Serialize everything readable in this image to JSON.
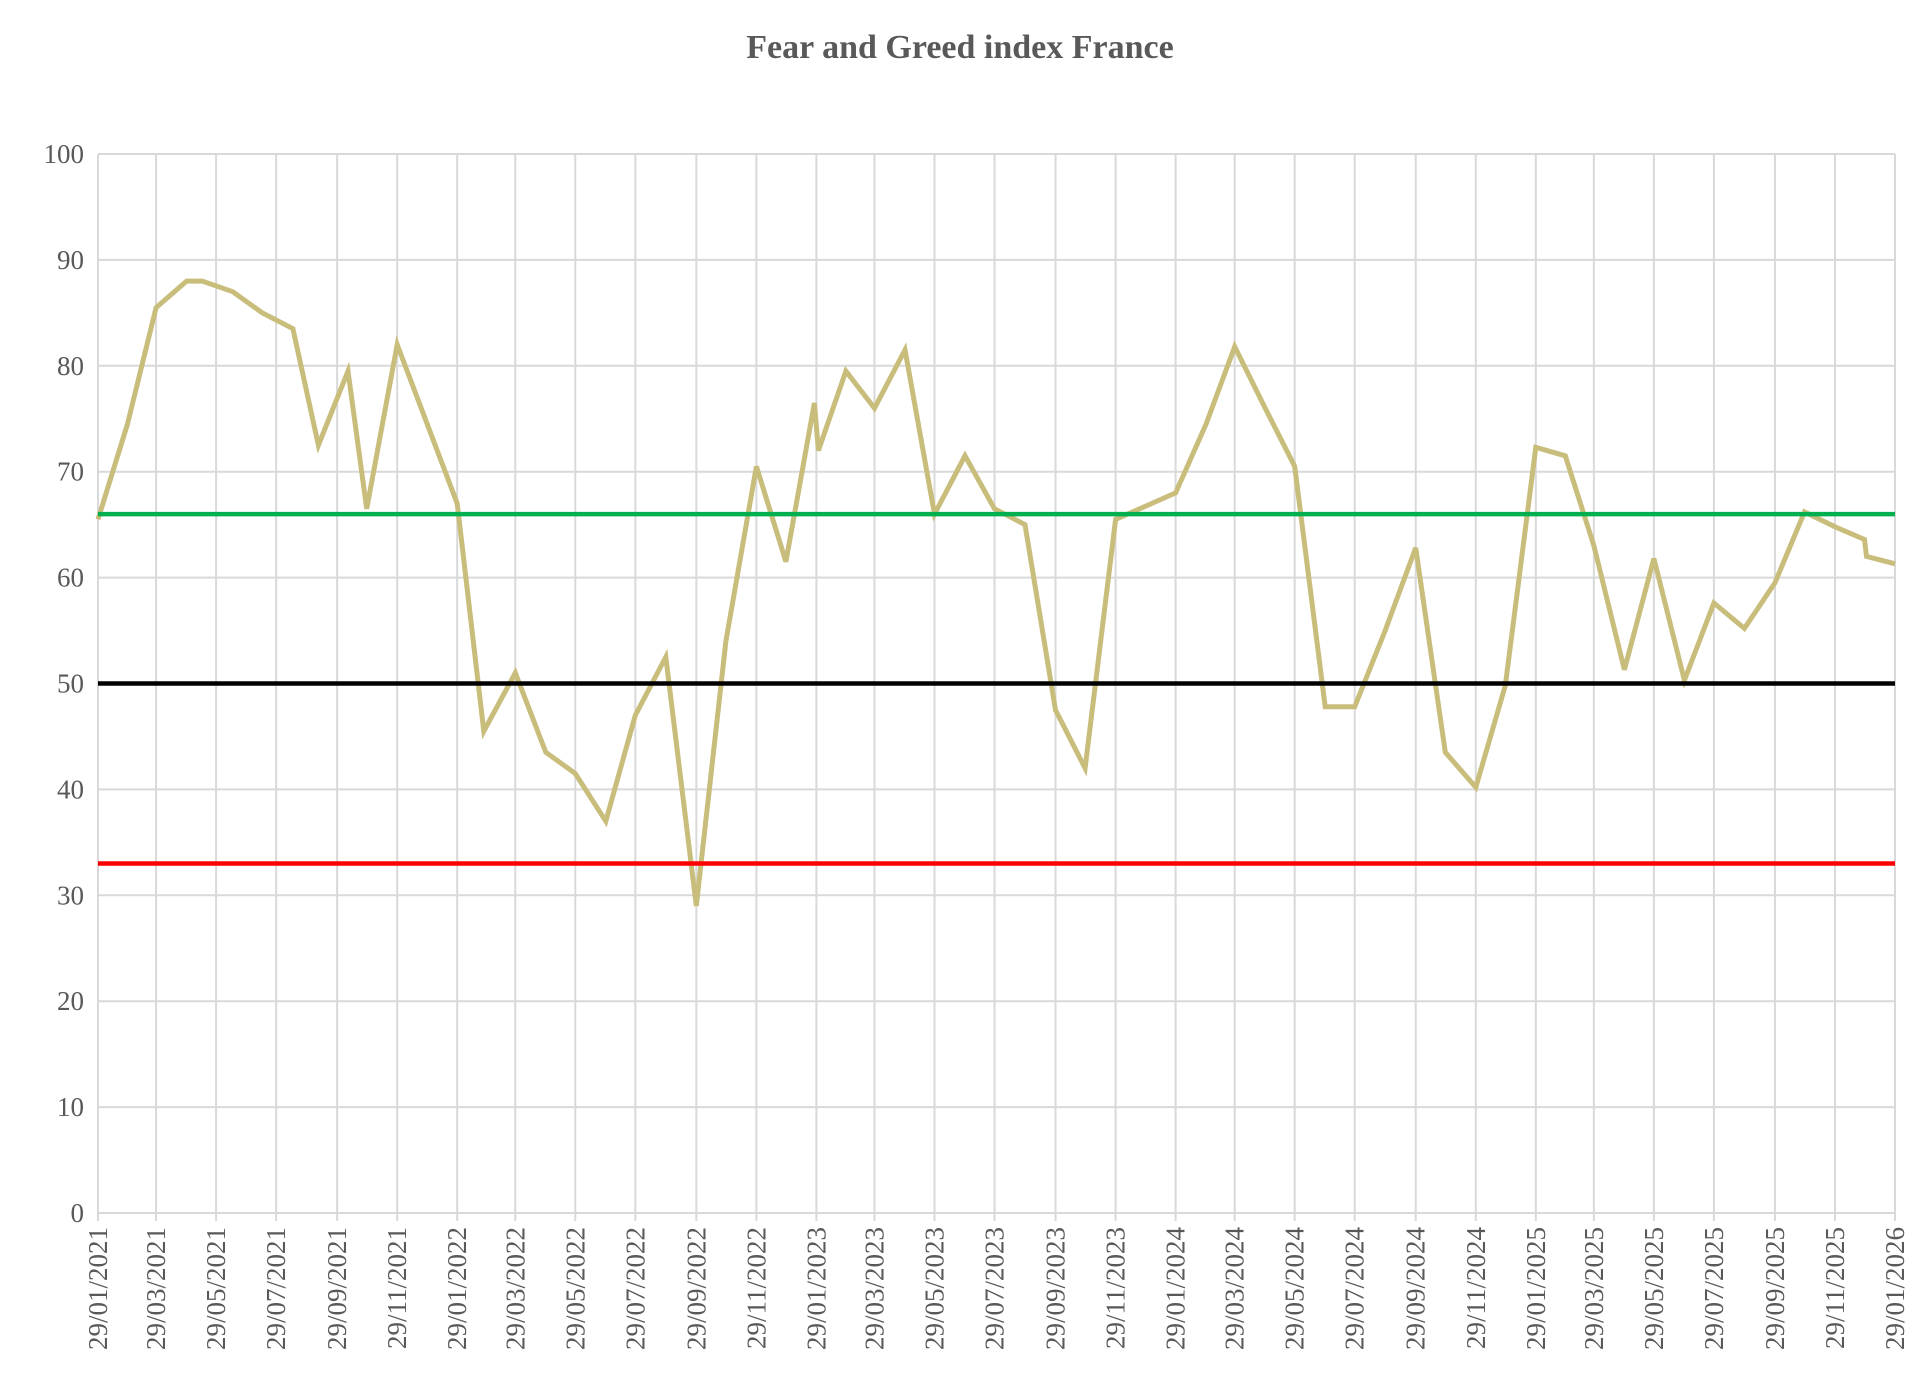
{
  "chart_data": {
    "type": "line",
    "title": "Fear and Greed index France",
    "xlabel": "",
    "ylabel": "",
    "ylim": [
      0,
      100
    ],
    "yticks": [
      "0",
      "10",
      "20",
      "30",
      "40",
      "50",
      "60",
      "70",
      "80",
      "90",
      "100"
    ],
    "x_tick_labels": [
      "29/01/2021",
      "29/03/2021",
      "29/05/2021",
      "29/07/2021",
      "29/09/2021",
      "29/11/2021",
      "29/01/2022",
      "29/03/2022",
      "29/05/2022",
      "29/07/2022",
      "29/09/2022",
      "29/11/2022",
      "29/01/2023",
      "29/03/2023",
      "29/05/2023",
      "29/07/2023",
      "29/09/2023",
      "29/11/2023",
      "29/01/2024",
      "29/03/2024",
      "29/05/2024",
      "29/07/2024",
      "29/09/2024",
      "29/11/2024",
      "29/01/2025",
      "29/03/2025",
      "29/05/2025",
      "29/07/2025",
      "29/09/2025",
      "29/11/2025",
      "29/01/2026"
    ],
    "x_range": [
      "29/01/2021",
      "29/01/2026"
    ],
    "grid": true,
    "legend": "none",
    "series": [
      {
        "color": "#c9bd7c",
        "points": [
          [
            "29/01/2021",
            65.5
          ],
          [
            "28/02/2021",
            74.5
          ],
          [
            "29/03/2021",
            85.5
          ],
          [
            "29/04/2021",
            88
          ],
          [
            "15/05/2021",
            88
          ],
          [
            "15/06/2021",
            87
          ],
          [
            "15/07/2021",
            85
          ],
          [
            "15/08/2021",
            83.5
          ],
          [
            "10/09/2021",
            72.5
          ],
          [
            "10/10/2021",
            79.5
          ],
          [
            "29/10/2021",
            66.5
          ],
          [
            "29/11/2021",
            82
          ],
          [
            "29/01/2022",
            67
          ],
          [
            "25/02/2022",
            45.5
          ],
          [
            "29/03/2022",
            51
          ],
          [
            "29/04/2022",
            43.5
          ],
          [
            "29/05/2022",
            41.5
          ],
          [
            "29/06/2022",
            37
          ],
          [
            "29/07/2022",
            47
          ],
          [
            "29/08/2022",
            52.5
          ],
          [
            "29/09/2022",
            29
          ],
          [
            "29/10/2022",
            54
          ],
          [
            "29/11/2022",
            70.5
          ],
          [
            "29/12/2022",
            61.5
          ],
          [
            "27/01/2023",
            76.5
          ],
          [
            "31/01/2023",
            72
          ],
          [
            "28/02/2023",
            79.5
          ],
          [
            "29/03/2023",
            76
          ],
          [
            "29/04/2023",
            81.5
          ],
          [
            "29/05/2023",
            66
          ],
          [
            "29/06/2023",
            71.5
          ],
          [
            "29/07/2023",
            66.5
          ],
          [
            "29/08/2023",
            65
          ],
          [
            "29/09/2023",
            47.5
          ],
          [
            "29/10/2023",
            42
          ],
          [
            "29/11/2023",
            65.5
          ],
          [
            "29/01/2024",
            68
          ],
          [
            "29/02/2024",
            74.5
          ],
          [
            "29/03/2024",
            81.8
          ],
          [
            "29/04/2024",
            76
          ],
          [
            "29/05/2024",
            70.5
          ],
          [
            "29/06/2024",
            47.8
          ],
          [
            "29/07/2024",
            47.8
          ],
          [
            "29/08/2024",
            55
          ],
          [
            "29/09/2024",
            62.8
          ],
          [
            "29/10/2024",
            43.5
          ],
          [
            "29/11/2024",
            40.2
          ],
          [
            "29/12/2024",
            49.8
          ],
          [
            "29/01/2025",
            72.3
          ],
          [
            "28/02/2025",
            71.5
          ],
          [
            "29/03/2025",
            63
          ],
          [
            "29/04/2025",
            51.3
          ],
          [
            "29/05/2025",
            61.8
          ],
          [
            "29/06/2025",
            50.3
          ],
          [
            "29/07/2025",
            57.6
          ],
          [
            "29/08/2025",
            55.2
          ],
          [
            "29/09/2025",
            59.5
          ],
          [
            "29/10/2025",
            66.2
          ],
          [
            "29/11/2025",
            64.8
          ],
          [
            "29/12/2025",
            63.6
          ],
          [
            "31/12/2025",
            62
          ],
          [
            "29/01/2026",
            61.3
          ]
        ]
      },
      {
        "color": "#00b050",
        "points": [
          [
            "29/01/2021",
            66
          ],
          [
            "29/01/2026",
            66
          ]
        ]
      },
      {
        "color": "#000000",
        "points": [
          [
            "29/01/2021",
            50
          ],
          [
            "29/01/2026",
            50
          ]
        ]
      },
      {
        "color": "#ff0000",
        "points": [
          [
            "29/01/2021",
            33
          ],
          [
            "29/01/2026",
            33
          ]
        ]
      }
    ]
  }
}
